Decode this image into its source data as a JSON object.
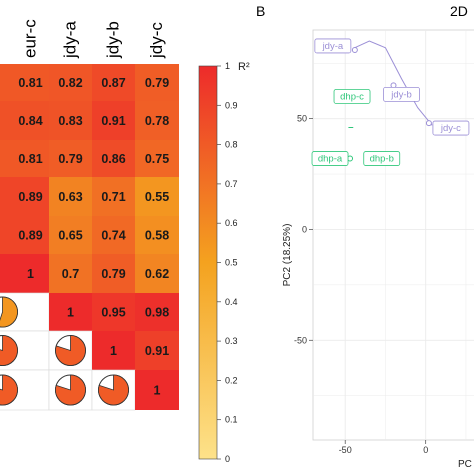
{
  "chart_data": [
    {
      "type": "heatmap",
      "column_labels": [
        "eur-c",
        "jdy-a",
        "jdy-b",
        "jdy-c"
      ],
      "rows": [
        [
          0.81,
          0.82,
          0.87,
          0.79
        ],
        [
          0.84,
          0.83,
          0.91,
          0.78
        ],
        [
          0.81,
          0.79,
          0.86,
          0.75
        ],
        [
          0.89,
          0.63,
          0.71,
          0.55
        ],
        [
          0.89,
          0.65,
          0.74,
          0.58
        ],
        [
          1,
          0.7,
          0.79,
          0.62
        ],
        [
          null,
          1,
          0.95,
          0.98
        ],
        [
          null,
          null,
          1,
          0.91
        ],
        [
          null,
          null,
          null,
          1
        ]
      ],
      "cell_labels": [
        [
          "0.81",
          "0.82",
          "0.87",
          "0.79"
        ],
        [
          "0.84",
          "0.83",
          "0.91",
          "0.78"
        ],
        [
          "0.81",
          "0.79",
          "0.86",
          "0.75"
        ],
        [
          "0.89",
          "0.63",
          "0.71",
          "0.55"
        ],
        [
          "0.89",
          "0.65",
          "0.74",
          "0.58"
        ],
        [
          "1",
          "0.7",
          "0.79",
          "0.62"
        ],
        [
          "",
          "1",
          "0.95",
          "0.98"
        ],
        [
          "",
          "",
          "1",
          "0.91"
        ],
        [
          "",
          "",
          "",
          "1"
        ]
      ],
      "colorbar": {
        "label": "R²",
        "ticks": [
          "1",
          "0.9",
          "0.8",
          "0.7",
          "0.6",
          "0.5",
          "0.4",
          "0.3",
          "0.2",
          "0.1",
          "0"
        ],
        "range": [
          0,
          1
        ],
        "low_color": "#fde28a",
        "mid_color": "#f4a21f",
        "high_color": "#ed2b2b"
      }
    },
    {
      "type": "scatter",
      "panel_letter": "B",
      "title": "2D",
      "xlabel": "PC",
      "ylabel": "PC2 (18.25%)",
      "xlim": [
        -70,
        30
      ],
      "ylim": [
        -95,
        90
      ],
      "x_ticks": [
        "-50",
        "0"
      ],
      "y_ticks": [
        "50",
        "0",
        "-50"
      ],
      "grid": true,
      "groups": [
        {
          "color": "#9b8fd6",
          "points": [
            {
              "label": "jdy-a",
              "x": -44,
              "y": 81
            },
            {
              "label": "jdy-b",
              "x": -20,
              "y": 65
            },
            {
              "label": "jdy-c",
              "x": 2,
              "y": 48
            }
          ],
          "hull": [
            [
              -44,
              82
            ],
            [
              -35,
              85
            ],
            [
              -25,
              82
            ],
            [
              -15,
              68
            ],
            [
              -5,
              55
            ],
            [
              4,
              47
            ]
          ]
        },
        {
          "color": "#2fc77a",
          "points": [
            {
              "label": "dhp-c",
              "x": -47,
              "y": 60
            },
            {
              "label": "dhp-a",
              "x": -47,
              "y": 32
            },
            {
              "label": "dhp-b",
              "x": -36,
              "y": 32
            }
          ],
          "hull": [
            [
              -47,
              46
            ],
            [
              -48,
              46
            ],
            [
              -45,
              46
            ]
          ]
        }
      ]
    }
  ]
}
